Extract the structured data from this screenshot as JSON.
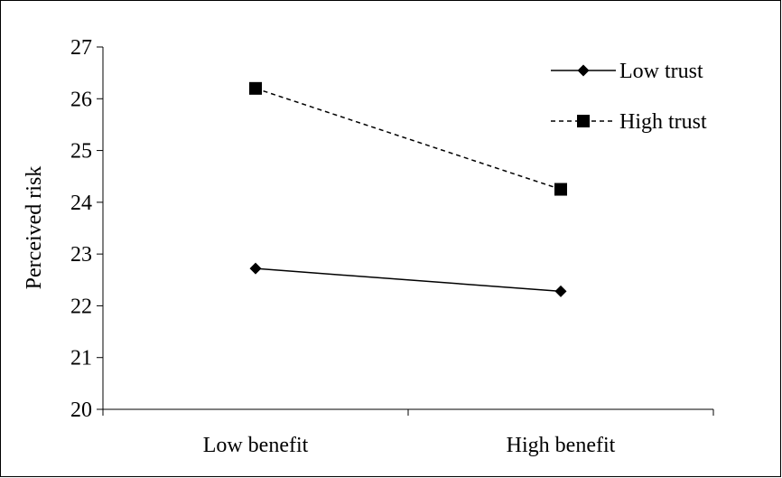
{
  "chart_data": {
    "type": "line",
    "title": "",
    "xlabel": "",
    "ylabel": "Perceived risk",
    "categories": [
      "Low benefit",
      "High benefit"
    ],
    "ylim": [
      20,
      27
    ],
    "yticks": [
      "20",
      "21",
      "22",
      "23",
      "24",
      "25",
      "26",
      "27"
    ],
    "grid": false,
    "legend_position": "top-right",
    "series": [
      {
        "name": "Low trust",
        "values": [
          22.72,
          22.28
        ],
        "marker": "diamond",
        "line_style": "solid",
        "color": "#000000"
      },
      {
        "name": "High trust",
        "values": [
          26.2,
          24.25
        ],
        "marker": "square",
        "line_style": "dashed",
        "color": "#000000"
      }
    ]
  }
}
